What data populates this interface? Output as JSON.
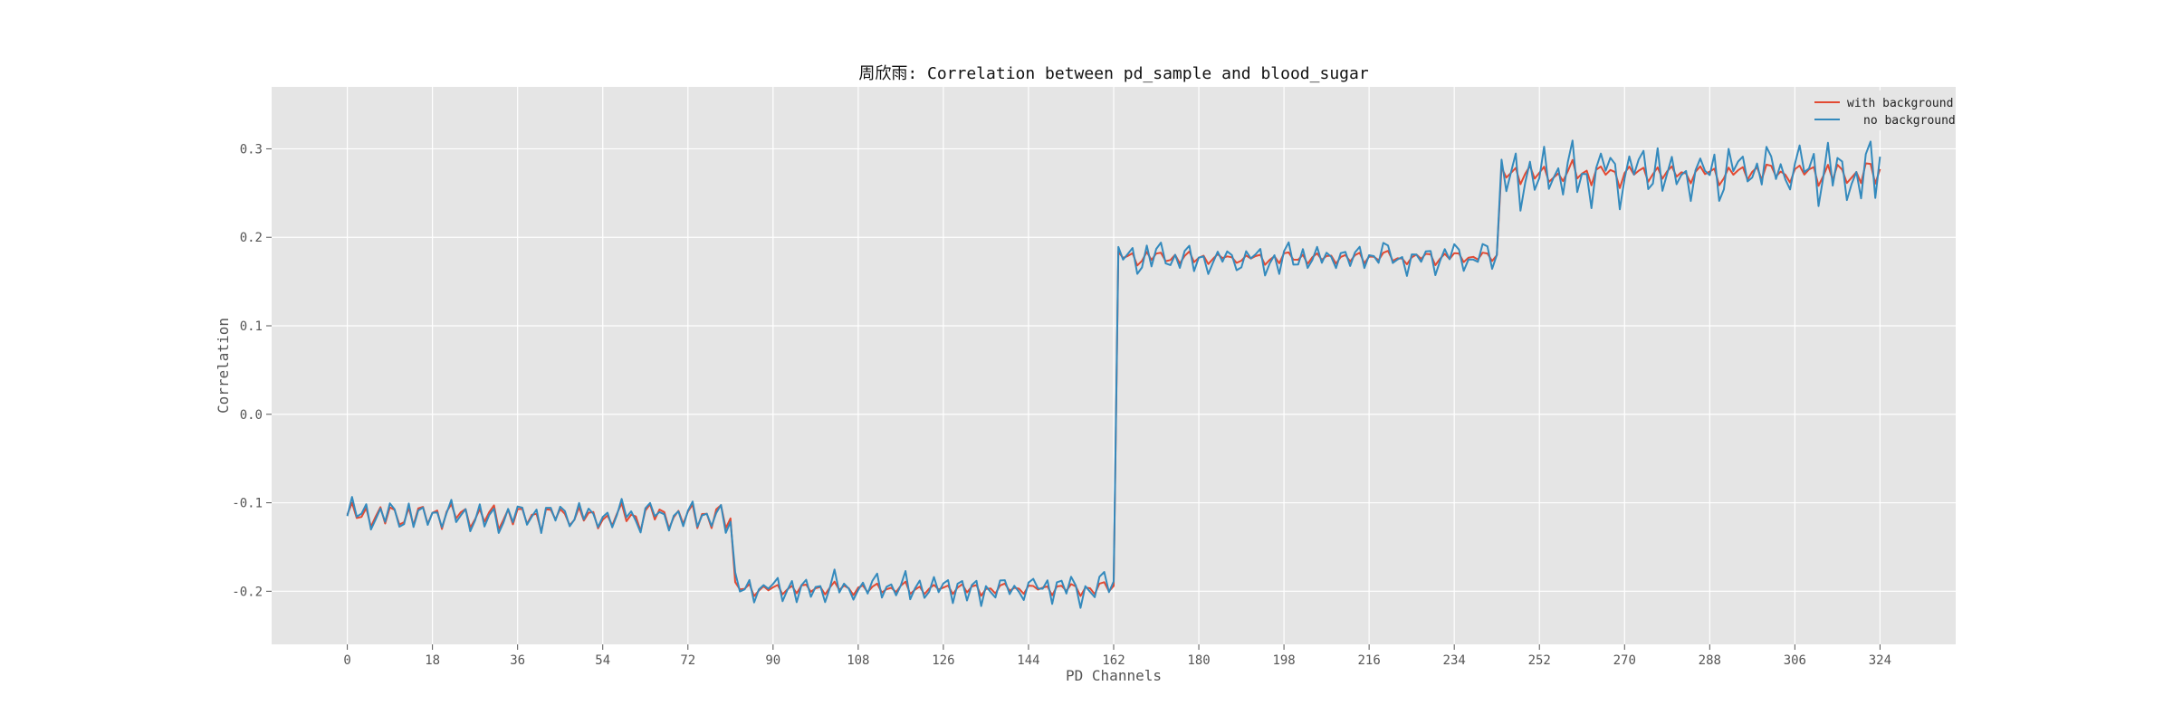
{
  "chart_data": {
    "type": "line",
    "title": "周欣雨: Correlation between pd_sample and blood_sugar",
    "xlabel": "PD Channels",
    "ylabel": "Correlation",
    "xlim": [
      -16,
      340
    ],
    "ylim": [
      -0.26,
      0.37
    ],
    "xticks": [
      0,
      18,
      36,
      54,
      72,
      90,
      108,
      126,
      144,
      162,
      180,
      198,
      216,
      234,
      252,
      270,
      288,
      306,
      324
    ],
    "yticks": [
      -0.2,
      -0.1,
      0.0,
      0.1,
      0.2,
      0.3
    ],
    "ytick_labels": [
      "-0.2",
      "-0.1",
      "0.0",
      "0.1",
      "0.2",
      "0.3"
    ],
    "grid": true,
    "legend_position": "top-right",
    "segments": [
      {
        "x_start": 0,
        "x_end": 81,
        "with_base": -0.115,
        "with_amp": 0.018,
        "no_base": -0.115,
        "no_amp": 0.02
      },
      {
        "x_start": 81,
        "x_end": 162,
        "with_base": -0.197,
        "with_amp": 0.008,
        "no_base": -0.197,
        "no_amp": 0.018
      },
      {
        "x_start": 162,
        "x_end": 243,
        "with_base": 0.177,
        "with_amp": 0.008,
        "no_base": 0.177,
        "no_amp": 0.018
      },
      {
        "x_start": 243,
        "x_end": 324,
        "with_base": 0.272,
        "with_amp": 0.015,
        "no_base": 0.272,
        "no_amp": 0.04
      }
    ],
    "series": [
      {
        "name": "with background",
        "color": "#e24a33"
      },
      {
        "name": "no background",
        "color": "#348abd"
      }
    ]
  }
}
